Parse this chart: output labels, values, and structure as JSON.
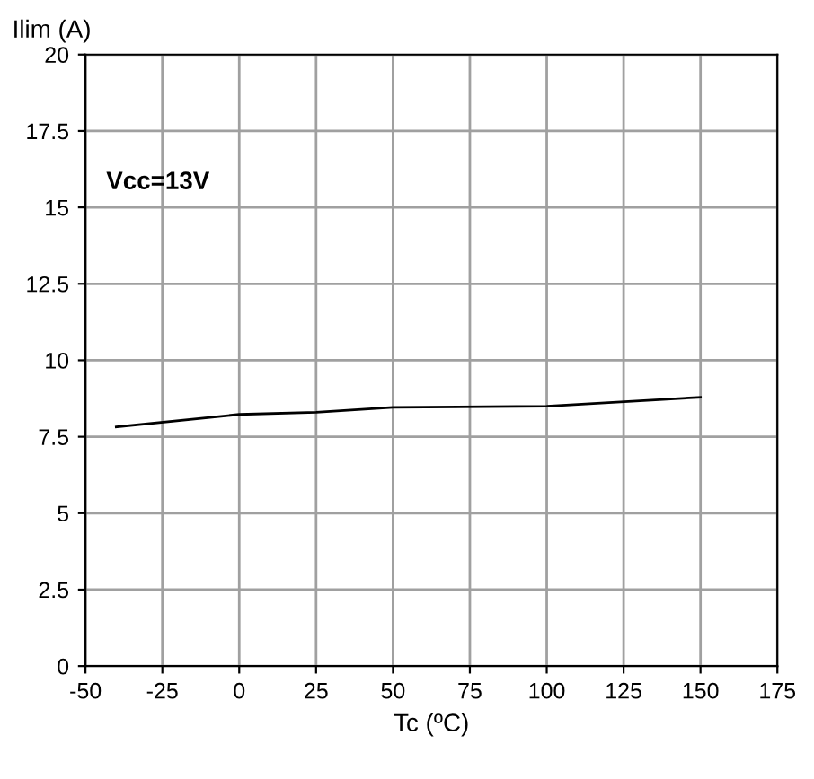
{
  "chart_data": {
    "type": "line",
    "ylabel": "Ilim (A)",
    "xlabel": "Tc (ºC)",
    "x": [
      -40,
      0,
      25,
      50,
      100,
      150
    ],
    "series": [
      {
        "color": "#000000",
        "values": [
          7.82,
          8.23,
          8.3,
          8.46,
          8.5,
          8.79
        ]
      }
    ],
    "xlim": [
      -50,
      175
    ],
    "xticks": [
      -50,
      -25,
      0,
      25,
      50,
      75,
      100,
      125,
      150,
      175
    ],
    "ylim": [
      0,
      20
    ],
    "yticks": [
      0,
      2.5,
      5,
      7.5,
      10,
      12.5,
      15,
      17.5,
      20
    ],
    "grid": true,
    "annotations": [
      "Vcc=13V"
    ]
  }
}
